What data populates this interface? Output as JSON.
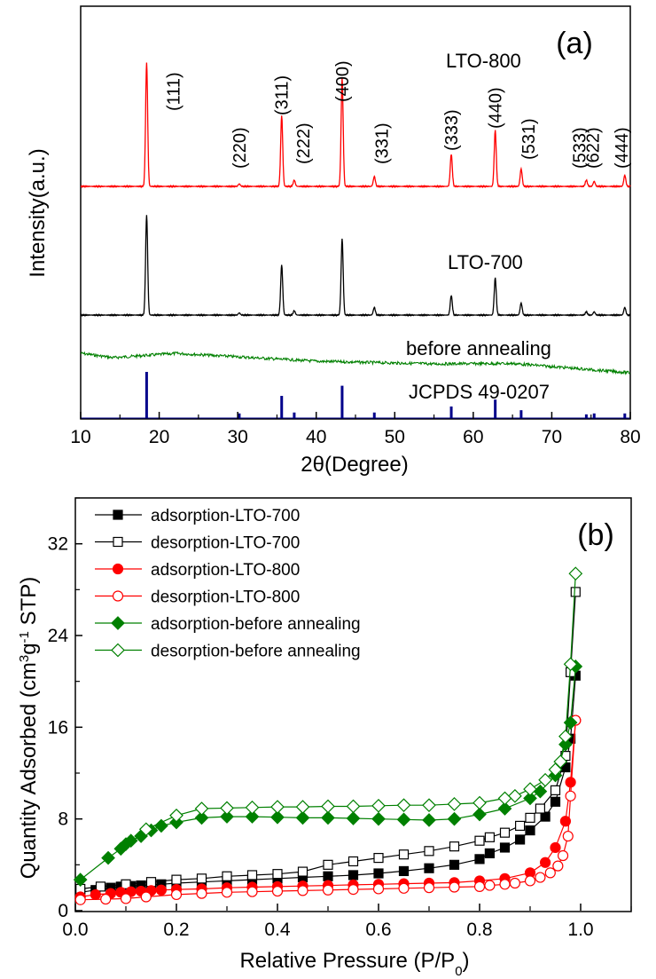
{
  "chart_data": [
    {
      "panel": "(a)",
      "type": "line",
      "xlabel": "2θ(Degree)",
      "ylabel": "Intensity(a.u.)",
      "xlim": [
        10,
        80
      ],
      "xticks": [
        10,
        20,
        30,
        40,
        50,
        60,
        70,
        80
      ],
      "series": [
        {
          "name": "LTO-800",
          "color": "#ff0000",
          "relative_peaks": [
            [
              18.4,
              1.0
            ],
            [
              30.2,
              0.02
            ],
            [
              35.6,
              0.57
            ],
            [
              37.2,
              0.05
            ],
            [
              43.3,
              0.87
            ],
            [
              47.4,
              0.08
            ],
            [
              57.2,
              0.26
            ],
            [
              62.8,
              0.45
            ],
            [
              66.1,
              0.14
            ],
            [
              74.4,
              0.05
            ],
            [
              75.4,
              0.04
            ],
            [
              79.3,
              0.09
            ]
          ]
        },
        {
          "name": "LTO-700",
          "color": "#000000",
          "relative_peaks": [
            [
              18.4,
              0.92
            ],
            [
              30.2,
              0.02
            ],
            [
              35.6,
              0.46
            ],
            [
              37.2,
              0.04
            ],
            [
              43.3,
              0.7
            ],
            [
              47.4,
              0.07
            ],
            [
              57.2,
              0.18
            ],
            [
              62.8,
              0.34
            ],
            [
              66.1,
              0.11
            ],
            [
              74.4,
              0.03
            ],
            [
              75.4,
              0.03
            ],
            [
              79.3,
              0.07
            ]
          ]
        },
        {
          "name": "before annealing",
          "color": "#008000",
          "description_free": true
        },
        {
          "name": "JCPDS 49-0207",
          "color": "#00008b",
          "sticks": [
            [
              18.4,
              1.0
            ],
            [
              30.2,
              0.1
            ],
            [
              35.6,
              0.48
            ],
            [
              37.2,
              0.12
            ],
            [
              43.3,
              0.7
            ],
            [
              47.4,
              0.12
            ],
            [
              57.2,
              0.25
            ],
            [
              62.8,
              0.4
            ],
            [
              66.1,
              0.17
            ],
            [
              74.4,
              0.08
            ],
            [
              75.4,
              0.1
            ],
            [
              79.3,
              0.1
            ]
          ]
        }
      ],
      "annotations": [
        {
          "text": "(111)",
          "x": 18.4
        },
        {
          "text": "(220)",
          "x": 30.2
        },
        {
          "text": "(311)",
          "x": 35.6
        },
        {
          "text": "(222)",
          "x": 37.2
        },
        {
          "text": "(400)",
          "x": 43.3
        },
        {
          "text": "(331)",
          "x": 47.4
        },
        {
          "text": "(333)",
          "x": 57.2
        },
        {
          "text": "(440)",
          "x": 62.8
        },
        {
          "text": "(531)",
          "x": 66.1
        },
        {
          "text": "(533)",
          "x": 74.4
        },
        {
          "text": "(622)",
          "x": 75.4
        },
        {
          "text": "(444)",
          "x": 79.3
        }
      ],
      "trace_labels": {
        "lto800": "LTO-800",
        "lto700": "LTO-700",
        "before": "before annealing",
        "jcpds": "JCPDS 49-0207"
      }
    },
    {
      "panel": "(b)",
      "type": "line",
      "xlabel": "Relative Pressure (P/P0)",
      "ylabel": "Quantity Adsorbed (cm3g-1 STP)",
      "xlim": [
        0.0,
        1.1
      ],
      "ylim": [
        0,
        36
      ],
      "xticks": [
        0.0,
        0.2,
        0.4,
        0.6,
        0.8,
        1.0
      ],
      "yticks": [
        0,
        8,
        16,
        24,
        32
      ],
      "series": [
        {
          "name": "adsorption-LTO-700",
          "color": "#000000",
          "marker": "square",
          "filled": true,
          "x": [
            0.01,
            0.04,
            0.07,
            0.09,
            0.11,
            0.13,
            0.15,
            0.17,
            0.2,
            0.25,
            0.3,
            0.35,
            0.4,
            0.45,
            0.5,
            0.55,
            0.6,
            0.65,
            0.7,
            0.75,
            0.8,
            0.82,
            0.85,
            0.88,
            0.9,
            0.93,
            0.95,
            0.97,
            0.98,
            0.99
          ],
          "y": [
            1.6,
            1.8,
            2.0,
            2.1,
            2.15,
            2.2,
            2.25,
            2.3,
            2.4,
            2.5,
            2.6,
            2.7,
            2.8,
            2.9,
            3.0,
            3.1,
            3.25,
            3.45,
            3.7,
            4.0,
            4.5,
            5.0,
            5.5,
            6.2,
            7.0,
            8.2,
            9.5,
            12.5,
            15.0,
            20.5
          ]
        },
        {
          "name": "desorption-LTO-700",
          "color": "#000000",
          "marker": "square",
          "filled": false,
          "x": [
            0.99,
            0.98,
            0.97,
            0.95,
            0.92,
            0.9,
            0.88,
            0.85,
            0.82,
            0.8,
            0.75,
            0.7,
            0.65,
            0.6,
            0.55,
            0.5,
            0.45,
            0.4,
            0.35,
            0.3,
            0.25,
            0.2,
            0.15,
            0.1,
            0.05,
            0.01
          ],
          "y": [
            27.8,
            20.8,
            13.5,
            10.5,
            8.9,
            8.1,
            7.4,
            6.8,
            6.4,
            6.1,
            5.6,
            5.2,
            4.9,
            4.6,
            4.3,
            4.0,
            3.4,
            3.2,
            3.1,
            3.0,
            2.8,
            2.7,
            2.5,
            2.3,
            2.1,
            1.9
          ]
        },
        {
          "name": "adsorption-LTO-800",
          "color": "#ff0000",
          "marker": "circle",
          "filled": true,
          "x": [
            0.01,
            0.04,
            0.07,
            0.09,
            0.11,
            0.13,
            0.15,
            0.17,
            0.2,
            0.25,
            0.3,
            0.35,
            0.4,
            0.45,
            0.5,
            0.55,
            0.6,
            0.65,
            0.7,
            0.75,
            0.8,
            0.85,
            0.9,
            0.93,
            0.95,
            0.97,
            0.98,
            0.99
          ],
          "y": [
            1.2,
            1.4,
            1.5,
            1.6,
            1.65,
            1.7,
            1.75,
            1.8,
            1.85,
            1.9,
            2.0,
            2.05,
            2.1,
            2.15,
            2.2,
            2.25,
            2.3,
            2.35,
            2.4,
            2.45,
            2.6,
            2.8,
            3.3,
            4.2,
            5.5,
            7.8,
            11.2,
            16.6
          ]
        },
        {
          "name": "desorption-LTO-800",
          "color": "#ff0000",
          "marker": "circle",
          "filled": false,
          "x": [
            0.99,
            0.98,
            0.975,
            0.965,
            0.955,
            0.94,
            0.92,
            0.9,
            0.87,
            0.85,
            0.82,
            0.8,
            0.75,
            0.7,
            0.65,
            0.6,
            0.55,
            0.5,
            0.45,
            0.4,
            0.35,
            0.3,
            0.25,
            0.2,
            0.14,
            0.1,
            0.06,
            0.01
          ],
          "y": [
            16.6,
            10.0,
            6.5,
            4.8,
            3.9,
            3.3,
            2.9,
            2.6,
            2.4,
            2.3,
            2.2,
            2.1,
            2.05,
            2.0,
            1.95,
            1.9,
            1.85,
            1.8,
            1.75,
            1.7,
            1.65,
            1.6,
            1.5,
            1.4,
            1.2,
            1.05,
            1.0,
            0.95
          ]
        },
        {
          "name": "adsorption-before annealing",
          "color": "#008000",
          "marker": "diamond",
          "filled": true,
          "x": [
            0.01,
            0.065,
            0.09,
            0.1,
            0.11,
            0.13,
            0.15,
            0.17,
            0.2,
            0.25,
            0.3,
            0.35,
            0.4,
            0.45,
            0.5,
            0.55,
            0.6,
            0.65,
            0.7,
            0.75,
            0.8,
            0.85,
            0.9,
            0.92,
            0.95,
            0.97,
            0.98,
            0.99
          ],
          "y": [
            2.7,
            4.6,
            5.4,
            5.8,
            6.1,
            6.5,
            7.0,
            7.4,
            7.7,
            8.1,
            8.2,
            8.2,
            8.15,
            8.1,
            8.1,
            8.05,
            8.0,
            7.95,
            7.9,
            8.0,
            8.4,
            8.9,
            9.8,
            10.4,
            11.8,
            14.5,
            16.4,
            21.3
          ]
        },
        {
          "name": "desorption-before annealing",
          "color": "#008000",
          "marker": "diamond",
          "filled": false,
          "x": [
            0.99,
            0.98,
            0.97,
            0.96,
            0.95,
            0.93,
            0.9,
            0.87,
            0.85,
            0.8,
            0.75,
            0.7,
            0.65,
            0.6,
            0.55,
            0.5,
            0.45,
            0.4,
            0.35,
            0.3,
            0.25,
            0.2,
            0.14
          ],
          "y": [
            29.4,
            21.5,
            15.2,
            13.0,
            12.3,
            11.4,
            10.6,
            10.0,
            9.8,
            9.4,
            9.3,
            9.2,
            9.2,
            9.15,
            9.1,
            9.1,
            9.05,
            9.05,
            9.0,
            8.95,
            8.9,
            8.3,
            7.1
          ]
        }
      ]
    }
  ]
}
